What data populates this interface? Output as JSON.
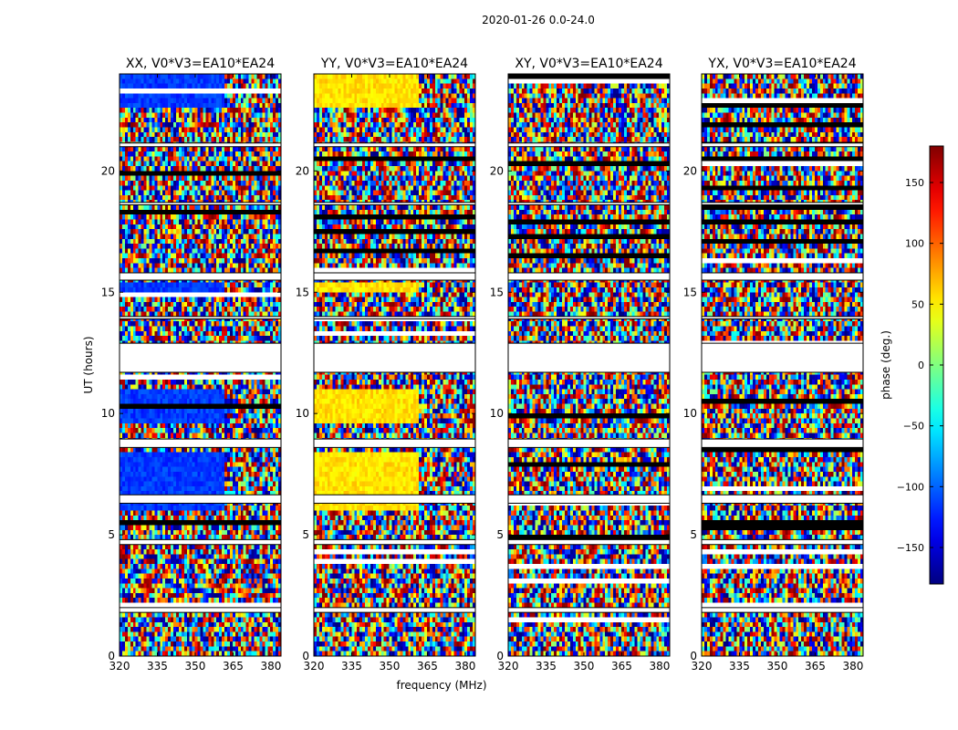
{
  "chart_data": {
    "type": "heatmap",
    "title": "2020-01-26 0.0-24.0",
    "xlabel": "frequency (MHz)",
    "ylabel": "UT (hours)",
    "xlim": [
      320,
      384
    ],
    "ylim": [
      0,
      24
    ],
    "xticks": [
      "320",
      "335",
      "350",
      "365",
      "380"
    ],
    "yticks": [
      "0",
      "5",
      "10",
      "15",
      "20"
    ],
    "panels": [
      {
        "id": "xx",
        "title": "XX, V0*V3=EA10*EA24",
        "dominant_phase": -115
      },
      {
        "id": "yy",
        "title": "YY, V0*V3=EA10*EA24",
        "dominant_phase": 55
      },
      {
        "id": "xy",
        "title": "XY, V0*V3=EA10*EA24",
        "dominant_phase": 0
      },
      {
        "id": "yx",
        "title": "YX, V0*V3=EA10*EA24",
        "dominant_phase": 0
      }
    ],
    "flagged_bands_hours": [
      [
        11.7,
        12.9
      ],
      [
        8.6,
        8.95
      ],
      [
        6.3,
        6.65
      ],
      [
        15.5,
        15.8
      ],
      [
        21.0,
        21.15
      ],
      [
        4.6,
        4.8
      ],
      [
        1.8,
        2.0
      ],
      [
        18.6,
        18.7
      ],
      [
        13.9,
        14.0
      ]
    ],
    "colorbar": {
      "label": "phase (deg.)",
      "range": [
        -180,
        180
      ],
      "ticks": [
        "150",
        "100",
        "50",
        "0",
        "−50",
        "−100",
        "−150"
      ],
      "tick_values": [
        150,
        100,
        50,
        0,
        -50,
        -100,
        -150
      ],
      "colormap": "jet"
    }
  }
}
